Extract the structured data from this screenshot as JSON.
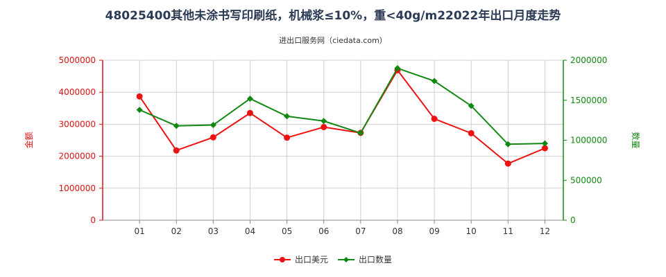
{
  "chart_data": {
    "type": "line",
    "title": "48025400其他未涂书写印刷纸，机械浆≤10%，重<40g/m22022年出口月度走势",
    "subtitle": "进出口服务网（ciedata.com）",
    "categories": [
      "01",
      "02",
      "03",
      "04",
      "05",
      "06",
      "07",
      "08",
      "09",
      "10",
      "11",
      "12"
    ],
    "y_left": {
      "label": "金额",
      "ylim": [
        0,
        5000000
      ],
      "ticks": [
        0,
        1000000,
        2000000,
        3000000,
        4000000,
        5000000
      ],
      "color": "#dd1111"
    },
    "y_right": {
      "label": "数量",
      "ylim": [
        0,
        2000000
      ],
      "ticks": [
        0,
        500000,
        1000000,
        1500000,
        2000000
      ],
      "color": "#118811"
    },
    "series": [
      {
        "name": "出口美元",
        "axis": "left",
        "color": "#ee1111",
        "marker": "circle",
        "values": [
          3870000,
          2180000,
          2590000,
          3350000,
          2580000,
          2910000,
          2730000,
          4690000,
          3170000,
          2720000,
          1770000,
          2250000
        ]
      },
      {
        "name": "出口数量",
        "axis": "right",
        "color": "#118811",
        "marker": "diamond",
        "values": [
          1380000,
          1180000,
          1190000,
          1520000,
          1300000,
          1240000,
          1090000,
          1900000,
          1740000,
          1430000,
          950000,
          960000
        ]
      }
    ],
    "grid": true,
    "legend": "bottom-center",
    "watermark": "进出口服务网"
  }
}
